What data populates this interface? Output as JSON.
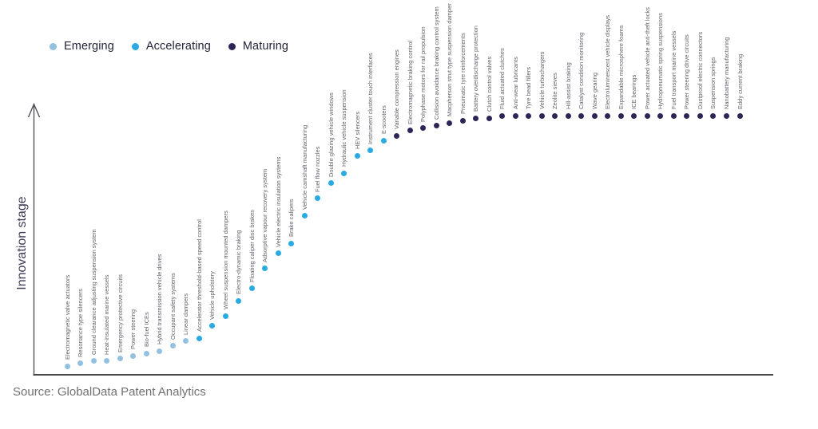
{
  "legend": {
    "items": [
      {
        "label": "Emerging",
        "stage": "emerging"
      },
      {
        "label": "Accelerating",
        "stage": "accelerating"
      },
      {
        "label": "Maturing",
        "stage": "maturing"
      }
    ]
  },
  "source": {
    "text": "Source: GlobalData Patent Analytics"
  },
  "chart_data": {
    "type": "scatter",
    "title": "",
    "xlabel": "",
    "ylabel": "Innovation stage",
    "ylim": [
      0,
      100
    ],
    "grid": false,
    "legend_position": "top-left",
    "axis_color": "#46464f",
    "stage_colors": {
      "emerging": "#92C1E0",
      "accelerating": "#29ABE2",
      "maturing": "#2E2457"
    },
    "points": [
      {
        "label": "Electromagnetic valve actuators",
        "stage": "emerging",
        "value": 0
      },
      {
        "label": "Resonance type silencers",
        "stage": "emerging",
        "value": 1
      },
      {
        "label": "Ground clearance adjusting suspension system",
        "stage": "emerging",
        "value": 2
      },
      {
        "label": "Heat-insulated marine vessels",
        "stage": "emerging",
        "value": 2
      },
      {
        "label": "Emergency protective circuits",
        "stage": "emerging",
        "value": 3
      },
      {
        "label": "Power steering",
        "stage": "emerging",
        "value": 4
      },
      {
        "label": "Bio-fuel ICEs",
        "stage": "emerging",
        "value": 5
      },
      {
        "label": "Hybrid transmission vehicle drives",
        "stage": "emerging",
        "value": 6
      },
      {
        "label": "Occupant safety systems",
        "stage": "emerging",
        "value": 8
      },
      {
        "label": "Linear dampers",
        "stage": "emerging",
        "value": 10
      },
      {
        "label": "Accelerator threshold-based speed control",
        "stage": "accelerating",
        "value": 11
      },
      {
        "label": "Vehicle upholstery",
        "stage": "accelerating",
        "value": 16
      },
      {
        "label": "Wheel suspension mounted dampers",
        "stage": "accelerating",
        "value": 20
      },
      {
        "label": "Electro-dynamic braking",
        "stage": "accelerating",
        "value": 26
      },
      {
        "label": "Floating caliper disc brakes",
        "stage": "accelerating",
        "value": 31
      },
      {
        "label": "Adsorptive vapour recovery system",
        "stage": "accelerating",
        "value": 39
      },
      {
        "label": "Vehicle electric insulation systems",
        "stage": "accelerating",
        "value": 45
      },
      {
        "label": "Brake calipers",
        "stage": "accelerating",
        "value": 49
      },
      {
        "label": "Vehicle camshaft manufacturing",
        "stage": "accelerating",
        "value": 60
      },
      {
        "label": "Fuel flow nozzles",
        "stage": "accelerating",
        "value": 67
      },
      {
        "label": "Double glazing vehicle windows",
        "stage": "accelerating",
        "value": 73
      },
      {
        "label": "Hydraulic vehicle suspension",
        "stage": "accelerating",
        "value": 77
      },
      {
        "label": "HEV silencers",
        "stage": "accelerating",
        "value": 84
      },
      {
        "label": "Instrument cluster touch interfaces",
        "stage": "accelerating",
        "value": 86
      },
      {
        "label": "E-scooters",
        "stage": "accelerating",
        "value": 90
      },
      {
        "label": "Variable compression engines",
        "stage": "maturing",
        "value": 92
      },
      {
        "label": "Electromagnetic braking control",
        "stage": "maturing",
        "value": 94
      },
      {
        "label": "Polyphase motors for rail propulsion",
        "stage": "maturing",
        "value": 95
      },
      {
        "label": "Collision avoidance braking control system",
        "stage": "maturing",
        "value": 96
      },
      {
        "label": "Macpherson strut type suspension damper",
        "stage": "maturing",
        "value": 97
      },
      {
        "label": "Pneumatic tyre reinforcements",
        "stage": "maturing",
        "value": 98
      },
      {
        "label": "Battery overdischarge protection",
        "stage": "maturing",
        "value": 99
      },
      {
        "label": "Clutch control valves",
        "stage": "maturing",
        "value": 99
      },
      {
        "label": "Fluid actuated clutches",
        "stage": "maturing",
        "value": 100
      },
      {
        "label": "Anti-wear lubricants",
        "stage": "maturing",
        "value": 100
      },
      {
        "label": "Tyre bead fillers",
        "stage": "maturing",
        "value": 100
      },
      {
        "label": "Vehicle turbochargers",
        "stage": "maturing",
        "value": 100
      },
      {
        "label": "Zeolite sieves",
        "stage": "maturing",
        "value": 100
      },
      {
        "label": "Hill-assist braking",
        "stage": "maturing",
        "value": 100
      },
      {
        "label": "Catalyst condition monitoring",
        "stage": "maturing",
        "value": 100
      },
      {
        "label": "Wave gearing",
        "stage": "maturing",
        "value": 100
      },
      {
        "label": "Electroluminescent vehicle displays",
        "stage": "maturing",
        "value": 100
      },
      {
        "label": "Expandable microsphere foams",
        "stage": "maturing",
        "value": 100
      },
      {
        "label": "ICE bearings",
        "stage": "maturing",
        "value": 100
      },
      {
        "label": "Power actuated vehicle anti-theft locks",
        "stage": "maturing",
        "value": 100
      },
      {
        "label": "Hydropneumatic spring suspensions",
        "stage": "maturing",
        "value": 100
      },
      {
        "label": "Fuel transport marine vessels",
        "stage": "maturing",
        "value": 100
      },
      {
        "label": "Power steering drive circuits",
        "stage": "maturing",
        "value": 100
      },
      {
        "label": "Dustproof electric connectors",
        "stage": "maturing",
        "value": 100
      },
      {
        "label": "Suspension springs",
        "stage": "maturing",
        "value": 100
      },
      {
        "label": "Nanobattery manufacturing",
        "stage": "maturing",
        "value": 100
      },
      {
        "label": "Eddy current braking",
        "stage": "maturing",
        "value": 100
      }
    ]
  }
}
